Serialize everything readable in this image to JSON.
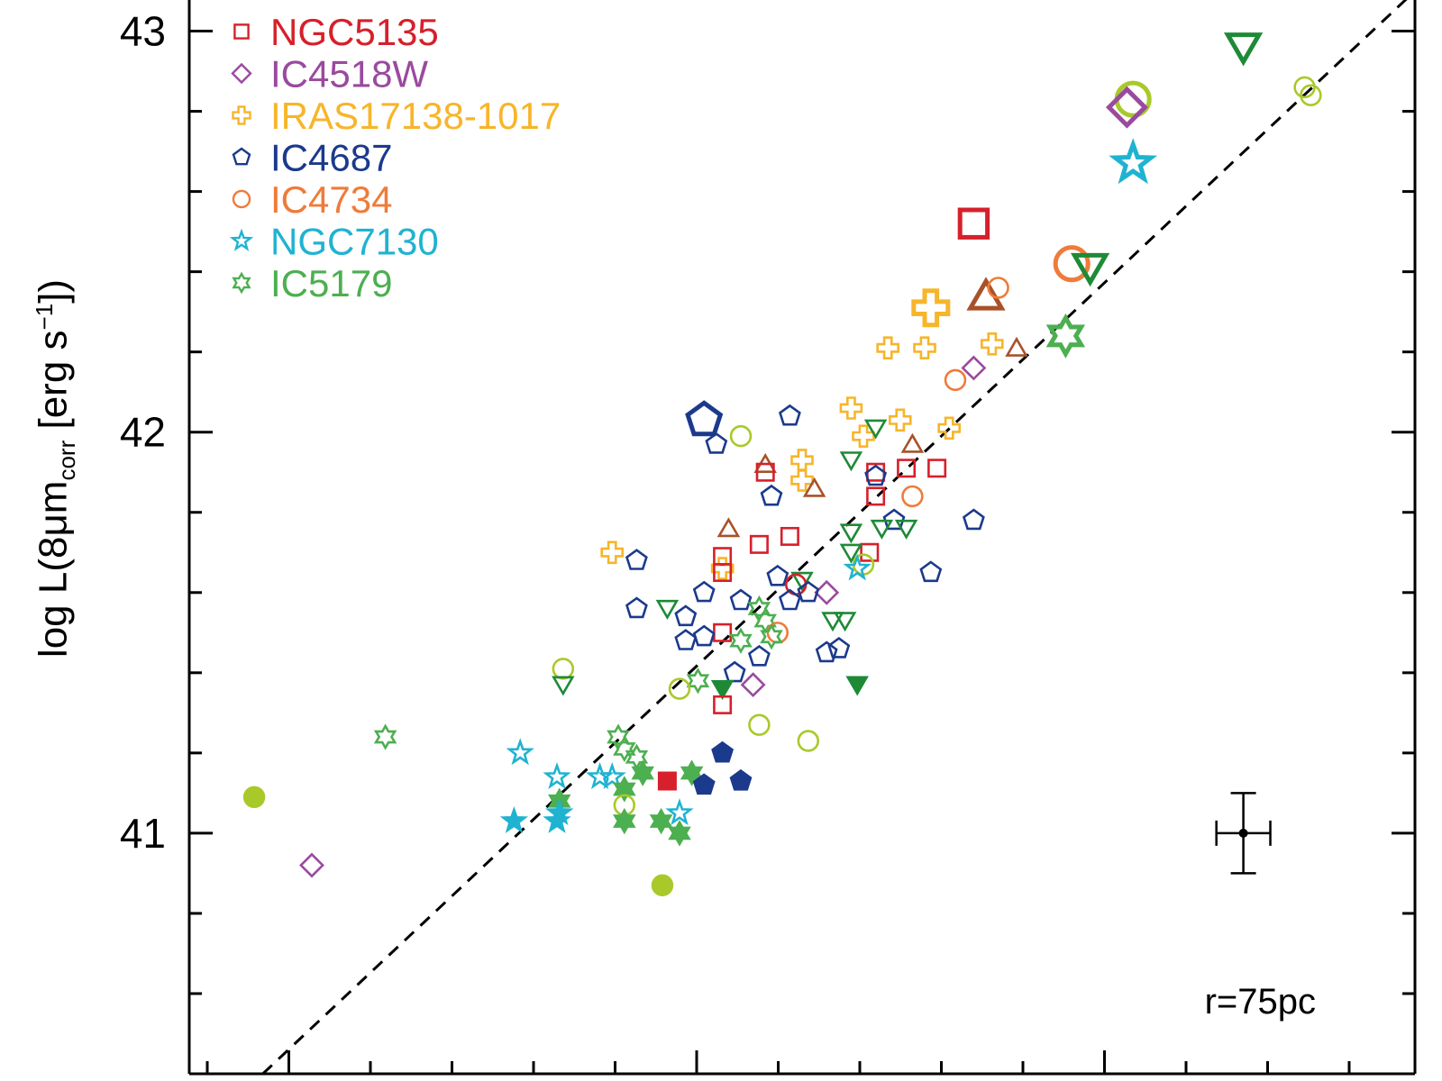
{
  "chart_data": {
    "type": "scatter",
    "ylabel": {
      "prefix": "log L(8μm",
      "sub": "corr",
      "mid": " [erg s",
      "sup": "−1",
      "suffix": "])"
    },
    "ylim": [
      40.4,
      43.1
    ],
    "xlim": [
      0,
      1
    ],
    "yticks": [
      41,
      42,
      43
    ],
    "ytick_labels": [
      "41",
      "42",
      "43"
    ],
    "annotation": "r=75pc",
    "colors": {
      "NGC5135": "#d6202b",
      "IC4518W": "#9a4a9e",
      "IRAS17138-1017": "#f7b52a",
      "IC4687": "#1b3a8c",
      "IC4734": "#ef7b3a",
      "NGC7130": "#1fb3d1",
      "IC5179": "#4caf50",
      "dark_green": "#1e8a36",
      "yellow_green": "#a9c92a",
      "brown": "#a8522a"
    },
    "legend": [
      {
        "label": "NGC5135",
        "marker": "square",
        "color": "#d6202b"
      },
      {
        "label": "IC4518W",
        "marker": "diamond",
        "color": "#9a4a9e"
      },
      {
        "label": "IRAS17138-1017",
        "marker": "cross",
        "color": "#f7b52a"
      },
      {
        "label": "IC4687",
        "marker": "pentagon",
        "color": "#1b3a8c"
      },
      {
        "label": "IC4734",
        "marker": "circle",
        "color": "#ef7b3a"
      },
      {
        "label": "NGC7130",
        "marker": "star",
        "color": "#1fb3d1"
      },
      {
        "label": "IC5179",
        "marker": "hexagram",
        "color": "#4caf50"
      }
    ],
    "fit_line": {
      "x": [
        0.06,
        1.0
      ],
      "y": [
        40.4,
        43.1
      ]
    },
    "error_bar": {
      "x": 0.86,
      "y": 41.0,
      "xerr": 0.022,
      "yerr": 0.1
    },
    "points": [
      {
        "x": 0.86,
        "y": 42.96,
        "m": "tri_down",
        "c": "#1e8a36",
        "s": "L",
        "f": false
      },
      {
        "x": 0.77,
        "y": 42.83,
        "m": "circle",
        "c": "#a9c92a",
        "s": "L",
        "f": false
      },
      {
        "x": 0.765,
        "y": 42.81,
        "m": "diamond",
        "c": "#9a4a9e",
        "s": "L",
        "f": false
      },
      {
        "x": 0.91,
        "y": 42.86,
        "m": "circle",
        "c": "#a9c92a",
        "s": "M",
        "f": false
      },
      {
        "x": 0.915,
        "y": 42.84,
        "m": "circle",
        "c": "#a9c92a",
        "s": "M",
        "f": false
      },
      {
        "x": 0.77,
        "y": 42.67,
        "m": "star",
        "c": "#1fb3d1",
        "s": "L",
        "f": false
      },
      {
        "x": 0.64,
        "y": 42.52,
        "m": "square",
        "c": "#d6202b",
        "s": "L",
        "f": false
      },
      {
        "x": 0.72,
        "y": 42.42,
        "m": "circle",
        "c": "#ef7b3a",
        "s": "L",
        "f": false
      },
      {
        "x": 0.735,
        "y": 42.41,
        "m": "tri_down",
        "c": "#1e8a36",
        "s": "L",
        "f": false
      },
      {
        "x": 0.65,
        "y": 42.34,
        "m": "tri_up",
        "c": "#a8522a",
        "s": "L",
        "f": false
      },
      {
        "x": 0.605,
        "y": 42.31,
        "m": "cross",
        "c": "#f7b52a",
        "s": "L",
        "f": false
      },
      {
        "x": 0.66,
        "y": 42.36,
        "m": "circle",
        "c": "#ef7b3a",
        "s": "M",
        "f": false
      },
      {
        "x": 0.715,
        "y": 42.24,
        "m": "hexagram",
        "c": "#4caf50",
        "s": "L",
        "f": false
      },
      {
        "x": 0.57,
        "y": 42.21,
        "m": "cross",
        "c": "#f7b52a",
        "s": "M",
        "f": false
      },
      {
        "x": 0.6,
        "y": 42.21,
        "m": "cross",
        "c": "#f7b52a",
        "s": "M",
        "f": false
      },
      {
        "x": 0.655,
        "y": 42.22,
        "m": "cross",
        "c": "#f7b52a",
        "s": "M",
        "f": false
      },
      {
        "x": 0.675,
        "y": 42.21,
        "m": "tri_up",
        "c": "#a8522a",
        "s": "M",
        "f": false
      },
      {
        "x": 0.64,
        "y": 42.16,
        "m": "diamond",
        "c": "#9a4a9e",
        "s": "M",
        "f": false
      },
      {
        "x": 0.625,
        "y": 42.13,
        "m": "circle",
        "c": "#ef7b3a",
        "s": "M",
        "f": false
      },
      {
        "x": 0.42,
        "y": 42.03,
        "m": "pentagon",
        "c": "#1b3a8c",
        "s": "L",
        "f": false
      },
      {
        "x": 0.49,
        "y": 42.04,
        "m": "pentagon",
        "c": "#1b3a8c",
        "s": "M",
        "f": false
      },
      {
        "x": 0.54,
        "y": 42.06,
        "m": "cross",
        "c": "#f7b52a",
        "s": "M",
        "f": false
      },
      {
        "x": 0.58,
        "y": 42.03,
        "m": "cross",
        "c": "#f7b52a",
        "s": "M",
        "f": false
      },
      {
        "x": 0.62,
        "y": 42.01,
        "m": "cross",
        "c": "#f7b52a",
        "s": "M",
        "f": false
      },
      {
        "x": 0.55,
        "y": 41.99,
        "m": "cross",
        "c": "#f7b52a",
        "s": "M",
        "f": false
      },
      {
        "x": 0.56,
        "y": 42.01,
        "m": "tri_down",
        "c": "#1e8a36",
        "s": "M",
        "f": false
      },
      {
        "x": 0.45,
        "y": 41.99,
        "m": "circle",
        "c": "#a9c92a",
        "s": "M",
        "f": false
      },
      {
        "x": 0.43,
        "y": 41.97,
        "m": "pentagon",
        "c": "#1b3a8c",
        "s": "M",
        "f": false
      },
      {
        "x": 0.59,
        "y": 41.97,
        "m": "tri_up",
        "c": "#a8522a",
        "s": "M",
        "f": false
      },
      {
        "x": 0.54,
        "y": 41.93,
        "m": "tri_down",
        "c": "#1e8a36",
        "s": "M",
        "f": false
      },
      {
        "x": 0.47,
        "y": 41.92,
        "m": "tri_up",
        "c": "#a8522a",
        "s": "M",
        "f": false
      },
      {
        "x": 0.47,
        "y": 41.9,
        "m": "square",
        "c": "#d6202b",
        "s": "M",
        "f": false
      },
      {
        "x": 0.5,
        "y": 41.93,
        "m": "cross",
        "c": "#f7b52a",
        "s": "M",
        "f": false
      },
      {
        "x": 0.5,
        "y": 41.88,
        "m": "cross",
        "c": "#f7b52a",
        "s": "M",
        "f": false
      },
      {
        "x": 0.51,
        "y": 41.86,
        "m": "tri_up",
        "c": "#a8522a",
        "s": "M",
        "f": false
      },
      {
        "x": 0.56,
        "y": 41.9,
        "m": "square",
        "c": "#d6202b",
        "s": "M",
        "f": false
      },
      {
        "x": 0.585,
        "y": 41.91,
        "m": "square",
        "c": "#d6202b",
        "s": "M",
        "f": false
      },
      {
        "x": 0.61,
        "y": 41.91,
        "m": "square",
        "c": "#d6202b",
        "s": "M",
        "f": false
      },
      {
        "x": 0.56,
        "y": 41.89,
        "m": "pentagon",
        "c": "#1b3a8c",
        "s": "M",
        "f": false
      },
      {
        "x": 0.56,
        "y": 41.84,
        "m": "square",
        "c": "#d6202b",
        "s": "M",
        "f": false
      },
      {
        "x": 0.475,
        "y": 41.84,
        "m": "pentagon",
        "c": "#1b3a8c",
        "s": "M",
        "f": false
      },
      {
        "x": 0.59,
        "y": 41.84,
        "m": "circle",
        "c": "#ef7b3a",
        "s": "M",
        "f": false
      },
      {
        "x": 0.575,
        "y": 41.78,
        "m": "pentagon",
        "c": "#1b3a8c",
        "s": "M",
        "f": false
      },
      {
        "x": 0.585,
        "y": 41.76,
        "m": "tri_down",
        "c": "#1e8a36",
        "s": "M",
        "f": false
      },
      {
        "x": 0.64,
        "y": 41.78,
        "m": "pentagon",
        "c": "#1b3a8c",
        "s": "M",
        "f": false
      },
      {
        "x": 0.44,
        "y": 41.76,
        "m": "tri_up",
        "c": "#a8522a",
        "s": "M",
        "f": false
      },
      {
        "x": 0.54,
        "y": 41.75,
        "m": "tri_down",
        "c": "#1e8a36",
        "s": "M",
        "f": false
      },
      {
        "x": 0.565,
        "y": 41.76,
        "m": "tri_down",
        "c": "#1e8a36",
        "s": "M",
        "f": false
      },
      {
        "x": 0.49,
        "y": 41.74,
        "m": "square",
        "c": "#d6202b",
        "s": "M",
        "f": false
      },
      {
        "x": 0.465,
        "y": 41.72,
        "m": "square",
        "c": "#d6202b",
        "s": "M",
        "f": false
      },
      {
        "x": 0.555,
        "y": 41.7,
        "m": "square",
        "c": "#d6202b",
        "s": "M",
        "f": false
      },
      {
        "x": 0.54,
        "y": 41.7,
        "m": "tri_down",
        "c": "#1e8a36",
        "s": "M",
        "f": false
      },
      {
        "x": 0.345,
        "y": 41.7,
        "m": "cross",
        "c": "#f7b52a",
        "s": "M",
        "f": false
      },
      {
        "x": 0.365,
        "y": 41.68,
        "m": "pentagon",
        "c": "#1b3a8c",
        "s": "M",
        "f": false
      },
      {
        "x": 0.435,
        "y": 41.69,
        "m": "square",
        "c": "#d6202b",
        "s": "M",
        "f": false
      },
      {
        "x": 0.435,
        "y": 41.66,
        "m": "cross",
        "c": "#f7b52a",
        "s": "M",
        "f": false
      },
      {
        "x": 0.435,
        "y": 41.65,
        "m": "square",
        "c": "#d6202b",
        "s": "M",
        "f": false
      },
      {
        "x": 0.55,
        "y": 41.67,
        "m": "circle",
        "c": "#a9c92a",
        "s": "M",
        "f": false
      },
      {
        "x": 0.545,
        "y": 41.66,
        "m": "star",
        "c": "#1fb3d1",
        "s": "M",
        "f": false
      },
      {
        "x": 0.605,
        "y": 41.65,
        "m": "pentagon",
        "c": "#1b3a8c",
        "s": "M",
        "f": false
      },
      {
        "x": 0.5,
        "y": 41.63,
        "m": "tri_down",
        "c": "#1e8a36",
        "s": "M",
        "f": false
      },
      {
        "x": 0.48,
        "y": 41.64,
        "m": "pentagon",
        "c": "#1b3a8c",
        "s": "M",
        "f": false
      },
      {
        "x": 0.495,
        "y": 41.62,
        "m": "circle",
        "c": "#d6202b",
        "s": "M",
        "f": false
      },
      {
        "x": 0.52,
        "y": 41.6,
        "m": "diamond",
        "c": "#9a4a9e",
        "s": "M",
        "f": false
      },
      {
        "x": 0.505,
        "y": 41.6,
        "m": "pentagon",
        "c": "#1b3a8c",
        "s": "M",
        "f": false
      },
      {
        "x": 0.42,
        "y": 41.6,
        "m": "pentagon",
        "c": "#1b3a8c",
        "s": "M",
        "f": false
      },
      {
        "x": 0.45,
        "y": 41.58,
        "m": "pentagon",
        "c": "#1b3a8c",
        "s": "M",
        "f": false
      },
      {
        "x": 0.49,
        "y": 41.58,
        "m": "pentagon",
        "c": "#1b3a8c",
        "s": "M",
        "f": false
      },
      {
        "x": 0.465,
        "y": 41.56,
        "m": "hexagram",
        "c": "#4caf50",
        "s": "M",
        "f": false
      },
      {
        "x": 0.365,
        "y": 41.56,
        "m": "pentagon",
        "c": "#1b3a8c",
        "s": "M",
        "f": false
      },
      {
        "x": 0.39,
        "y": 41.56,
        "m": "tri_down",
        "c": "#1e8a36",
        "s": "M",
        "f": false
      },
      {
        "x": 0.405,
        "y": 41.54,
        "m": "pentagon",
        "c": "#1b3a8c",
        "s": "M",
        "f": false
      },
      {
        "x": 0.47,
        "y": 41.53,
        "m": "hexagram",
        "c": "#4caf50",
        "s": "M",
        "f": false
      },
      {
        "x": 0.525,
        "y": 41.53,
        "m": "tri_down",
        "c": "#1e8a36",
        "s": "M",
        "f": false
      },
      {
        "x": 0.535,
        "y": 41.53,
        "m": "tri_down",
        "c": "#1e8a36",
        "s": "M",
        "f": false
      },
      {
        "x": 0.435,
        "y": 41.5,
        "m": "square",
        "c": "#d6202b",
        "s": "M",
        "f": false
      },
      {
        "x": 0.48,
        "y": 41.5,
        "m": "circle",
        "c": "#ef7b3a",
        "s": "M",
        "f": false
      },
      {
        "x": 0.475,
        "y": 41.49,
        "m": "hexagram",
        "c": "#4caf50",
        "s": "M",
        "f": false
      },
      {
        "x": 0.405,
        "y": 41.48,
        "m": "pentagon",
        "c": "#1b3a8c",
        "s": "M",
        "f": false
      },
      {
        "x": 0.42,
        "y": 41.49,
        "m": "pentagon",
        "c": "#1b3a8c",
        "s": "M",
        "f": false
      },
      {
        "x": 0.45,
        "y": 41.48,
        "m": "hexagram",
        "c": "#4caf50",
        "s": "M",
        "f": false
      },
      {
        "x": 0.53,
        "y": 41.46,
        "m": "pentagon",
        "c": "#1b3a8c",
        "s": "M",
        "f": false
      },
      {
        "x": 0.52,
        "y": 41.45,
        "m": "pentagon",
        "c": "#1b3a8c",
        "s": "M",
        "f": false
      },
      {
        "x": 0.465,
        "y": 41.44,
        "m": "pentagon",
        "c": "#1b3a8c",
        "s": "M",
        "f": false
      },
      {
        "x": 0.305,
        "y": 41.41,
        "m": "circle",
        "c": "#a9c92a",
        "s": "M",
        "f": false
      },
      {
        "x": 0.445,
        "y": 41.4,
        "m": "pentagon",
        "c": "#1b3a8c",
        "s": "M",
        "f": false
      },
      {
        "x": 0.415,
        "y": 41.38,
        "m": "hexagram",
        "c": "#4caf50",
        "s": "M",
        "f": false
      },
      {
        "x": 0.46,
        "y": 41.37,
        "m": "diamond",
        "c": "#9a4a9e",
        "s": "M",
        "f": false
      },
      {
        "x": 0.305,
        "y": 41.37,
        "m": "tri_down",
        "c": "#1e8a36",
        "s": "M",
        "f": false
      },
      {
        "x": 0.4,
        "y": 41.36,
        "m": "circle",
        "c": "#a9c92a",
        "s": "M",
        "f": false
      },
      {
        "x": 0.435,
        "y": 41.36,
        "m": "tri_down",
        "c": "#1e8a36",
        "s": "M",
        "f": true
      },
      {
        "x": 0.545,
        "y": 41.37,
        "m": "tri_down",
        "c": "#1e8a36",
        "s": "M",
        "f": true
      },
      {
        "x": 0.435,
        "y": 41.32,
        "m": "square",
        "c": "#d6202b",
        "s": "M",
        "f": false
      },
      {
        "x": 0.465,
        "y": 41.27,
        "m": "circle",
        "c": "#a9c92a",
        "s": "M",
        "f": false
      },
      {
        "x": 0.16,
        "y": 41.24,
        "m": "hexagram",
        "c": "#4caf50",
        "s": "M",
        "f": false
      },
      {
        "x": 0.35,
        "y": 41.24,
        "m": "hexagram",
        "c": "#4caf50",
        "s": "M",
        "f": false
      },
      {
        "x": 0.505,
        "y": 41.23,
        "m": "circle",
        "c": "#a9c92a",
        "s": "M",
        "f": false
      },
      {
        "x": 0.355,
        "y": 41.21,
        "m": "hexagram",
        "c": "#4caf50",
        "s": "M",
        "f": false
      },
      {
        "x": 0.365,
        "y": 41.19,
        "m": "hexagram",
        "c": "#4caf50",
        "s": "M",
        "f": false
      },
      {
        "x": 0.27,
        "y": 41.2,
        "m": "star",
        "c": "#1fb3d1",
        "s": "M",
        "f": false
      },
      {
        "x": 0.435,
        "y": 41.2,
        "m": "pentagon",
        "c": "#1b3a8c",
        "s": "M",
        "f": true
      },
      {
        "x": 0.3,
        "y": 41.14,
        "m": "star",
        "c": "#1fb3d1",
        "s": "M",
        "f": false
      },
      {
        "x": 0.335,
        "y": 41.14,
        "m": "star",
        "c": "#1fb3d1",
        "s": "M",
        "f": false
      },
      {
        "x": 0.345,
        "y": 41.14,
        "m": "star",
        "c": "#1fb3d1",
        "s": "M",
        "f": false
      },
      {
        "x": 0.37,
        "y": 41.15,
        "m": "hexagram",
        "c": "#4caf50",
        "s": "M",
        "f": true
      },
      {
        "x": 0.41,
        "y": 41.15,
        "m": "hexagram",
        "c": "#4caf50",
        "s": "M",
        "f": true
      },
      {
        "x": 0.39,
        "y": 41.13,
        "m": "square",
        "c": "#d6202b",
        "s": "M",
        "f": true
      },
      {
        "x": 0.42,
        "y": 41.12,
        "m": "pentagon",
        "c": "#1b3a8c",
        "s": "M",
        "f": true
      },
      {
        "x": 0.45,
        "y": 41.13,
        "m": "pentagon",
        "c": "#1b3a8c",
        "s": "M",
        "f": true
      },
      {
        "x": 0.355,
        "y": 41.11,
        "m": "hexagram",
        "c": "#4caf50",
        "s": "M",
        "f": true
      },
      {
        "x": 0.302,
        "y": 41.08,
        "m": "hexagram",
        "c": "#4caf50",
        "s": "M",
        "f": true
      },
      {
        "x": 0.355,
        "y": 41.07,
        "m": "circle",
        "c": "#a9c92a",
        "s": "M",
        "f": false
      },
      {
        "x": 0.302,
        "y": 41.05,
        "m": "star",
        "c": "#1fb3d1",
        "s": "M",
        "f": true
      },
      {
        "x": 0.4,
        "y": 41.05,
        "m": "star",
        "c": "#1fb3d1",
        "s": "M",
        "f": false
      },
      {
        "x": 0.265,
        "y": 41.03,
        "m": "star",
        "c": "#1fb3d1",
        "s": "M",
        "f": true
      },
      {
        "x": 0.3,
        "y": 41.03,
        "m": "star",
        "c": "#1fb3d1",
        "s": "M",
        "f": true
      },
      {
        "x": 0.355,
        "y": 41.03,
        "m": "hexagram",
        "c": "#4caf50",
        "s": "M",
        "f": true
      },
      {
        "x": 0.385,
        "y": 41.03,
        "m": "hexagram",
        "c": "#4caf50",
        "s": "M",
        "f": true
      },
      {
        "x": 0.4,
        "y": 41.0,
        "m": "hexagram",
        "c": "#4caf50",
        "s": "M",
        "f": true
      },
      {
        "x": 0.053,
        "y": 41.09,
        "m": "circle",
        "c": "#a9c92a",
        "s": "M",
        "f": true
      },
      {
        "x": 0.1,
        "y": 40.92,
        "m": "diamond",
        "c": "#9a4a9e",
        "s": "M",
        "f": false
      },
      {
        "x": 0.386,
        "y": 40.87,
        "m": "circle",
        "c": "#a9c92a",
        "s": "M",
        "f": true
      }
    ]
  }
}
